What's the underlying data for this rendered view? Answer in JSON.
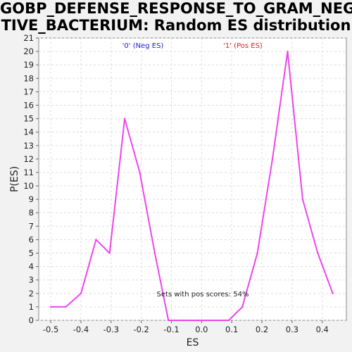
{
  "chart_data": {
    "type": "line",
    "title_lines": [
      "GOBP_DEFENSE_RESPONSE_TO_GRAM_NEGA",
      "TIVE_BACTERIUM: Random ES distribution"
    ],
    "xlabel": "ES",
    "ylabel": "P(ES)",
    "xlim": [
      -0.54,
      0.48
    ],
    "ylim": [
      0,
      21
    ],
    "xticks": [
      -0.5,
      -0.4,
      -0.3,
      -0.2,
      -0.1,
      0.0,
      0.1,
      0.2,
      0.3,
      0.4
    ],
    "xtick_labels": [
      "-0.5",
      "-0.4",
      "-0.3",
      "-0.2",
      "-0.1",
      "0.0",
      "0.1",
      "0.2",
      "0.3",
      "0.4"
    ],
    "yticks": [
      0,
      1,
      2,
      3,
      4,
      5,
      6,
      7,
      8,
      9,
      10,
      11,
      12,
      13,
      14,
      15,
      16,
      17,
      18,
      19,
      20,
      21
    ],
    "ytick_labels": [
      "0",
      "1",
      "2",
      "3",
      "4",
      "5",
      "6",
      "7",
      "8",
      "9",
      "10",
      "11",
      "12",
      "13",
      "14",
      "15",
      "16",
      "17",
      "18",
      "19",
      "20",
      "21"
    ],
    "grid": true,
    "series": [
      {
        "color": "#ee44ee",
        "x": [
          -0.5,
          -0.45,
          -0.4,
          -0.35,
          -0.305,
          -0.255,
          -0.205,
          -0.155,
          -0.11,
          -0.06,
          -0.01,
          0.04,
          0.09,
          0.135,
          0.185,
          0.235,
          0.285,
          0.335,
          0.385,
          0.435
        ],
        "y": [
          1,
          1,
          2,
          6,
          5,
          15,
          11,
          5,
          0,
          0,
          0,
          0,
          0,
          1,
          5,
          12,
          20,
          9,
          5,
          2
        ]
      }
    ],
    "legend": [
      {
        "label": "'0' (Neg ES)",
        "color": "#2222cc"
      },
      {
        "label": "'1' (Pos ES)",
        "color": "#dd2222"
      }
    ],
    "annotation": "Sets with pos scores: 54%"
  }
}
